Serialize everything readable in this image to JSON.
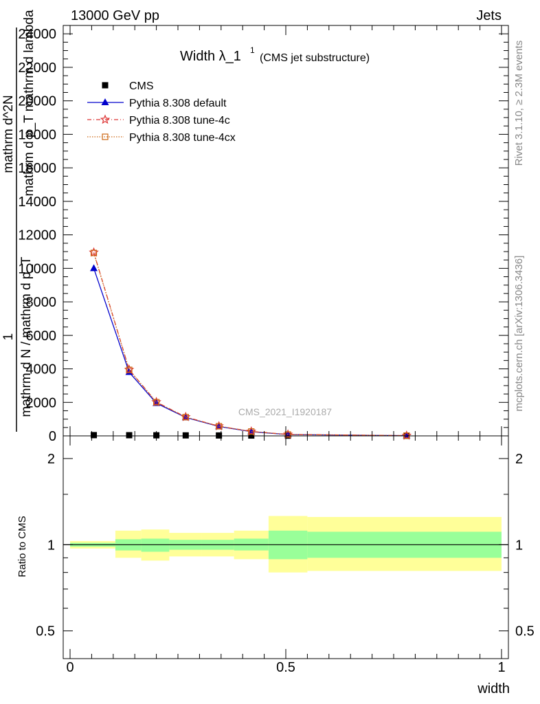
{
  "header": {
    "left": "13000 GeV pp",
    "right": "Jets"
  },
  "side_labels": {
    "rivet": "Rivet 3.1.10, ≥ 2.3M events",
    "mcplots": "mcplots.cern.ch [arXiv:1306.3436]"
  },
  "plot_title": {
    "main": "Width λ_1",
    "sup": "1",
    "sub": "(CMS jet substructure)"
  },
  "watermark": "CMS_2021_I1920187",
  "ylabel_main": {
    "frac1_num": "1",
    "frac1_den": "mathrm d N / mathrm d p_T",
    "frac2_num": "mathrm d^2N",
    "frac2_den": "mathrm d p_T mathrm d lambda"
  },
  "ylabel_ratio": "Ratio to CMS",
  "xlabel": "width",
  "legend": [
    {
      "label": "CMS",
      "color": "#000000",
      "marker": "square",
      "line": "none"
    },
    {
      "label": "Pythia 8.308 default",
      "color": "#0000cc",
      "marker": "triangle",
      "line": "solid"
    },
    {
      "label": "Pythia 8.308 tune-4c",
      "color": "#dd3333",
      "marker": "star",
      "line": "dashdot"
    },
    {
      "label": "Pythia 8.308 tune-4cx",
      "color": "#cc6611",
      "marker": "open-square",
      "line": "dotted"
    }
  ],
  "chart_data": [
    {
      "type": "line",
      "panel": "main",
      "xlim": [
        0,
        1
      ],
      "ylim": [
        0,
        24500
      ],
      "y_ticks": [
        0,
        2000,
        4000,
        6000,
        8000,
        10000,
        12000,
        14000,
        16000,
        18000,
        20000,
        22000,
        24000
      ],
      "y_tick_labels": [
        "0",
        "2000",
        "4000",
        "6000",
        "8000",
        "10000",
        "12000",
        "14000",
        "16000",
        "18000",
        "20000",
        "22000",
        "24000"
      ],
      "x": [
        0.055,
        0.137,
        0.2,
        0.268,
        0.345,
        0.42,
        0.505,
        0.78
      ],
      "series": [
        {
          "name": "CMS",
          "values": [
            45,
            40,
            35,
            30,
            25,
            20,
            12,
            5
          ]
        },
        {
          "name": "Pythia 8.308 default",
          "values": [
            10000,
            3800,
            1950,
            1100,
            560,
            250,
            80,
            15
          ]
        },
        {
          "name": "Pythia 8.308 tune-4c",
          "values": [
            10950,
            3950,
            2020,
            1130,
            580,
            265,
            85,
            17
          ]
        },
        {
          "name": "Pythia 8.308 tune-4cx",
          "values": [
            10920,
            3940,
            2010,
            1120,
            575,
            262,
            84,
            16
          ]
        }
      ]
    },
    {
      "type": "area",
      "panel": "ratio",
      "xlim": [
        0,
        1
      ],
      "ylim": [
        0.4,
        2.4
      ],
      "scale": "log",
      "y_ticks": [
        0.5,
        1,
        2
      ],
      "y_tick_labels": [
        "0.5",
        "1",
        "2"
      ],
      "x_ticks": [
        0,
        0.5,
        1
      ],
      "x_tick_labels": [
        "0",
        "0.5",
        "1"
      ],
      "reference": 1,
      "bins": [
        {
          "x0": 0.0,
          "x1": 0.105,
          "stat_lo": 0.985,
          "stat_hi": 1.015,
          "tot_lo": 0.97,
          "tot_hi": 1.03
        },
        {
          "x0": 0.105,
          "x1": 0.165,
          "stat_lo": 0.955,
          "stat_hi": 1.045,
          "tot_lo": 0.9,
          "tot_hi": 1.12
        },
        {
          "x0": 0.165,
          "x1": 0.23,
          "stat_lo": 0.945,
          "stat_hi": 1.05,
          "tot_lo": 0.88,
          "tot_hi": 1.13
        },
        {
          "x0": 0.23,
          "x1": 0.305,
          "stat_lo": 0.96,
          "stat_hi": 1.04,
          "tot_lo": 0.91,
          "tot_hi": 1.1
        },
        {
          "x0": 0.305,
          "x1": 0.38,
          "stat_lo": 0.96,
          "stat_hi": 1.04,
          "tot_lo": 0.91,
          "tot_hi": 1.1
        },
        {
          "x0": 0.38,
          "x1": 0.46,
          "stat_lo": 0.955,
          "stat_hi": 1.05,
          "tot_lo": 0.89,
          "tot_hi": 1.12
        },
        {
          "x0": 0.46,
          "x1": 0.55,
          "stat_lo": 0.89,
          "stat_hi": 1.12,
          "tot_lo": 0.8,
          "tot_hi": 1.26
        },
        {
          "x0": 0.55,
          "x1": 1.0,
          "stat_lo": 0.9,
          "stat_hi": 1.11,
          "tot_lo": 0.81,
          "tot_hi": 1.25
        }
      ],
      "colors": {
        "stat": "#99ff99",
        "total": "#ffff99"
      }
    }
  ]
}
